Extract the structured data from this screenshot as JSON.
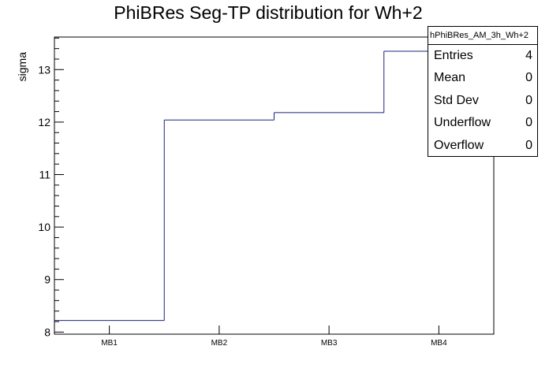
{
  "chart_data": {
    "type": "step",
    "title": "PhiBRes Seg-TP distribution for Wh+2",
    "xlabel": "",
    "ylabel": "sigma",
    "categories": [
      "MB1",
      "MB2",
      "MB3",
      "MB4"
    ],
    "values": [
      8.22,
      12.04,
      12.18,
      13.35
    ],
    "ylim": [
      7.96,
      13.62
    ],
    "yticks": [
      8,
      9,
      10,
      11,
      12,
      13
    ],
    "ytick_labels": [
      "8",
      "9",
      "10",
      "11",
      "12",
      "13"
    ],
    "line_color": "#1a237e",
    "stats": {
      "name": "hPhiBRes_AM_3h_Wh+2",
      "rows": [
        {
          "label": "Entries",
          "value": "4"
        },
        {
          "label": "Mean",
          "value": "0"
        },
        {
          "label": "Std Dev",
          "value": "0"
        },
        {
          "label": "Underflow",
          "value": "0"
        },
        {
          "label": "Overflow",
          "value": "0"
        }
      ]
    }
  }
}
